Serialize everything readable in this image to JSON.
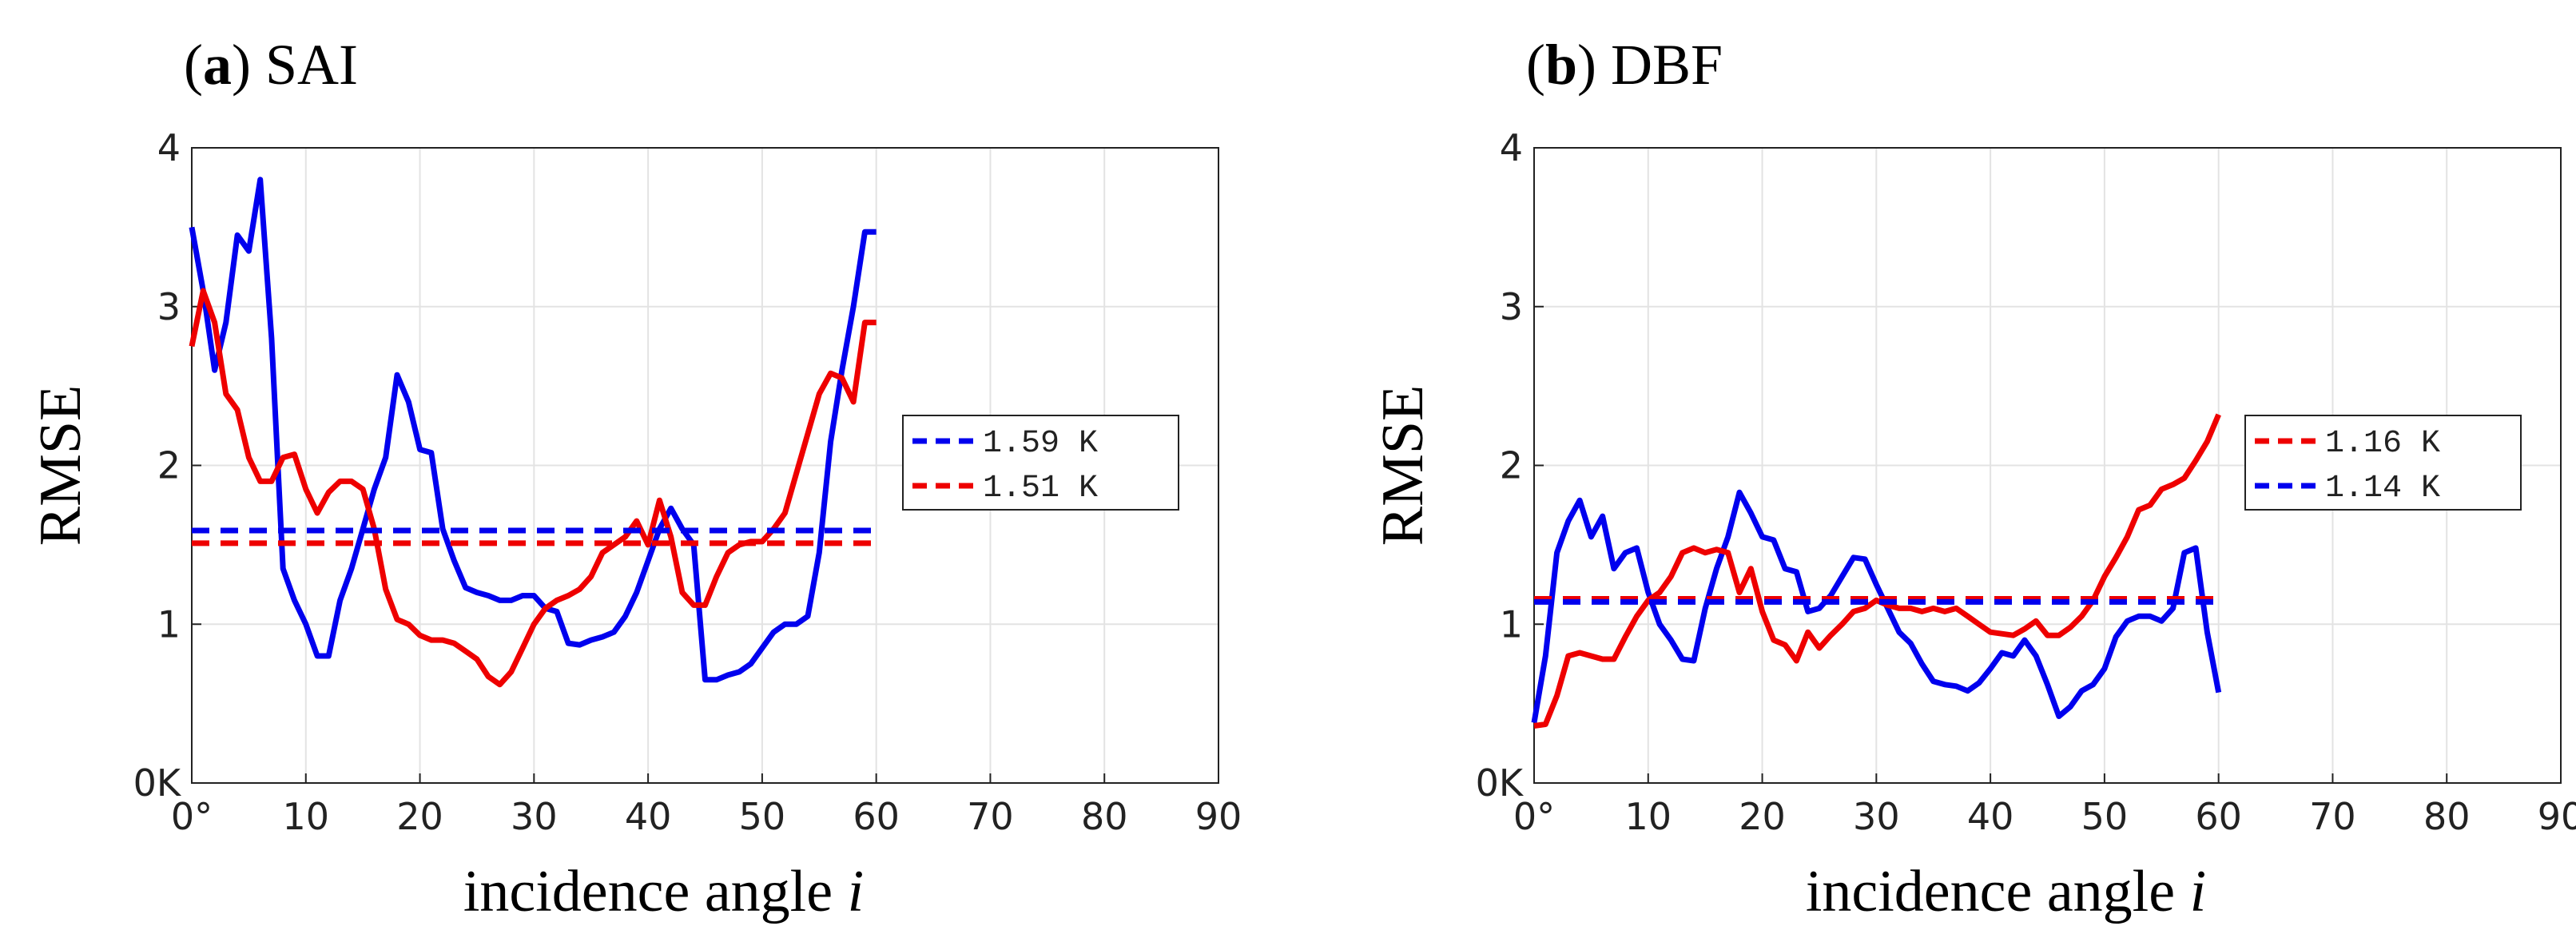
{
  "chart_data": [
    {
      "type": "line",
      "panel_letter": "a",
      "title": "SAI",
      "xlabel": "incidence angle",
      "xlabel_var": "i",
      "ylabel": "RMSE",
      "xlim": [
        0,
        90
      ],
      "ylim": [
        0,
        4
      ],
      "x_ticks": [
        "0°",
        "10",
        "20",
        "30",
        "40",
        "50",
        "60",
        "70",
        "80",
        "90"
      ],
      "y_ticks": [
        "0K",
        "1",
        "2",
        "3",
        "4"
      ],
      "grid": true,
      "legend_position": "center-right",
      "series": [
        {
          "name": "blue",
          "color": "#0000ee",
          "x": [
            0,
            1,
            2,
            3,
            4,
            5,
            6,
            7,
            8,
            9,
            10,
            11,
            12,
            13,
            14,
            15,
            16,
            17,
            18,
            19,
            20,
            21,
            22,
            23,
            24,
            25,
            26,
            27,
            28,
            29,
            30,
            31,
            32,
            33,
            34,
            35,
            36,
            37,
            38,
            39,
            40,
            41,
            42,
            43,
            44,
            45,
            46,
            47,
            48,
            49,
            50,
            51,
            52,
            53,
            54,
            55,
            56,
            57,
            58,
            59,
            60
          ],
          "values": [
            3.5,
            3.1,
            2.6,
            2.9,
            3.45,
            3.35,
            3.8,
            2.8,
            1.35,
            1.15,
            1.0,
            0.8,
            0.8,
            1.15,
            1.35,
            1.6,
            1.85,
            2.05,
            2.57,
            2.4,
            2.1,
            2.08,
            1.6,
            1.4,
            1.23,
            1.2,
            1.18,
            1.15,
            1.15,
            1.18,
            1.18,
            1.1,
            1.08,
            0.88,
            0.87,
            0.9,
            0.92,
            0.95,
            1.05,
            1.2,
            1.4,
            1.6,
            1.73,
            1.6,
            1.5,
            0.65,
            0.65,
            0.68,
            0.7,
            0.75,
            0.85,
            0.95,
            1.0,
            1.0,
            1.05,
            1.45,
            2.15,
            2.6,
            3.0,
            3.47,
            3.47
          ]
        },
        {
          "name": "red",
          "color": "#ee0000",
          "x": [
            0,
            1,
            2,
            3,
            4,
            5,
            6,
            7,
            8,
            9,
            10,
            11,
            12,
            13,
            14,
            15,
            16,
            17,
            18,
            19,
            20,
            21,
            22,
            23,
            24,
            25,
            26,
            27,
            28,
            29,
            30,
            31,
            32,
            33,
            34,
            35,
            36,
            37,
            38,
            39,
            40,
            41,
            42,
            43,
            44,
            45,
            46,
            47,
            48,
            49,
            50,
            51,
            52,
            53,
            54,
            55,
            56,
            57,
            58,
            59,
            60
          ],
          "values": [
            2.75,
            3.1,
            2.9,
            2.45,
            2.35,
            2.05,
            1.9,
            1.9,
            2.05,
            2.07,
            1.85,
            1.7,
            1.83,
            1.9,
            1.9,
            1.85,
            1.6,
            1.22,
            1.03,
            1.0,
            0.93,
            0.9,
            0.9,
            0.88,
            0.83,
            0.78,
            0.67,
            0.62,
            0.7,
            0.85,
            1.0,
            1.1,
            1.15,
            1.18,
            1.22,
            1.3,
            1.45,
            1.5,
            1.55,
            1.65,
            1.5,
            1.78,
            1.55,
            1.2,
            1.12,
            1.12,
            1.3,
            1.45,
            1.5,
            1.52,
            1.52,
            1.6,
            1.7,
            1.95,
            2.2,
            2.45,
            2.58,
            2.55,
            2.4,
            2.9,
            2.9
          ],
          "line_end_x": 60
        },
        {
          "name": "1.59 K",
          "color": "#0000ee",
          "style": "dashed",
          "x": [
            0,
            60
          ],
          "values": [
            1.59,
            1.59
          ]
        },
        {
          "name": "1.51 K",
          "color": "#ee0000",
          "style": "dashed",
          "x": [
            0,
            60
          ],
          "values": [
            1.51,
            1.51
          ]
        }
      ],
      "legend": [
        {
          "label": "1.59 K",
          "color": "#0000ee"
        },
        {
          "label": "1.51 K",
          "color": "#ee0000"
        }
      ]
    },
    {
      "type": "line",
      "panel_letter": "b",
      "title": "DBF",
      "xlabel": "incidence angle",
      "xlabel_var": "i",
      "ylabel": "RMSE",
      "xlim": [
        0,
        90
      ],
      "ylim": [
        0,
        4
      ],
      "x_ticks": [
        "0°",
        "10",
        "20",
        "30",
        "40",
        "50",
        "60",
        "70",
        "80",
        "90"
      ],
      "y_ticks": [
        "0K",
        "1",
        "2",
        "3",
        "4"
      ],
      "grid": true,
      "legend_position": "center-right",
      "series": [
        {
          "name": "blue",
          "color": "#0000ee",
          "x": [
            0,
            1,
            2,
            3,
            4,
            5,
            6,
            7,
            8,
            9,
            10,
            11,
            12,
            13,
            14,
            15,
            16,
            17,
            18,
            19,
            20,
            21,
            22,
            23,
            24,
            25,
            26,
            27,
            28,
            29,
            30,
            31,
            32,
            33,
            34,
            35,
            36,
            37,
            38,
            39,
            40,
            41,
            42,
            43,
            44,
            45,
            46,
            47,
            48,
            49,
            50,
            51,
            52,
            53,
            54,
            55,
            56,
            57,
            58,
            59,
            60
          ],
          "values": [
            0.38,
            0.8,
            1.45,
            1.65,
            1.78,
            1.55,
            1.68,
            1.35,
            1.45,
            1.48,
            1.2,
            1.0,
            0.9,
            0.78,
            0.77,
            1.1,
            1.35,
            1.55,
            1.83,
            1.7,
            1.55,
            1.53,
            1.35,
            1.33,
            1.08,
            1.1,
            1.18,
            1.3,
            1.42,
            1.41,
            1.25,
            1.1,
            0.95,
            0.88,
            0.75,
            0.64,
            0.62,
            0.61,
            0.58,
            0.63,
            0.72,
            0.82,
            0.8,
            0.9,
            0.8,
            0.62,
            0.42,
            0.48,
            0.58,
            0.62,
            0.72,
            0.92,
            1.02,
            1.05,
            1.05,
            1.02,
            1.1,
            1.45,
            1.48,
            0.95,
            0.57
          ]
        },
        {
          "name": "red",
          "color": "#ee0000",
          "x": [
            0,
            1,
            2,
            3,
            4,
            5,
            6,
            7,
            8,
            9,
            10,
            11,
            12,
            13,
            14,
            15,
            16,
            17,
            18,
            19,
            20,
            21,
            22,
            23,
            24,
            25,
            26,
            27,
            28,
            29,
            30,
            31,
            32,
            33,
            34,
            35,
            36,
            37,
            38,
            39,
            40,
            41,
            42,
            43,
            44,
            45,
            46,
            47,
            48,
            49,
            50,
            51,
            52,
            53,
            54,
            55,
            56,
            57,
            58,
            59,
            60
          ],
          "values": [
            0.36,
            0.37,
            0.55,
            0.8,
            0.82,
            0.8,
            0.78,
            0.78,
            0.92,
            1.05,
            1.15,
            1.2,
            1.3,
            1.45,
            1.48,
            1.45,
            1.47,
            1.45,
            1.2,
            1.35,
            1.08,
            0.9,
            0.87,
            0.77,
            0.95,
            0.85,
            0.93,
            1.0,
            1.08,
            1.1,
            1.15,
            1.12,
            1.1,
            1.1,
            1.08,
            1.1,
            1.08,
            1.1,
            1.05,
            1.0,
            0.95,
            0.94,
            0.93,
            0.97,
            1.02,
            0.93,
            0.93,
            0.98,
            1.05,
            1.15,
            1.3,
            1.42,
            1.55,
            1.72,
            1.75,
            1.85,
            1.88,
            1.92,
            2.03,
            2.15,
            2.32
          ],
          "line_end_x": 60
        },
        {
          "name": "1.16 K",
          "color": "#ee0000",
          "style": "dashed",
          "x": [
            0,
            60
          ],
          "values": [
            1.16,
            1.16
          ]
        },
        {
          "name": "1.14 K",
          "color": "#0000ee",
          "style": "dashed",
          "x": [
            0,
            60
          ],
          "values": [
            1.14,
            1.14
          ]
        }
      ],
      "legend": [
        {
          "label": "1.16 K",
          "color": "#ee0000"
        },
        {
          "label": "1.14 K",
          "color": "#0000ee"
        }
      ]
    }
  ]
}
